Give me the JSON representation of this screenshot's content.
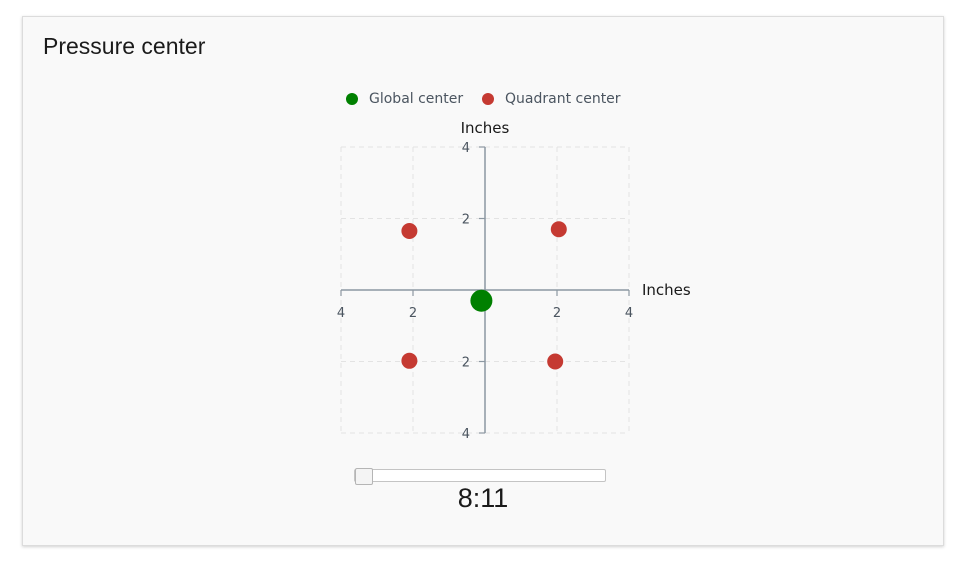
{
  "card": {
    "title": "Pressure center"
  },
  "legend": {
    "items": [
      {
        "label": "Global center",
        "color": "#008000"
      },
      {
        "label": "Quadrant center",
        "color": "#c53a32"
      }
    ]
  },
  "slider": {
    "value_label": "8:11",
    "position": 0
  },
  "chart_data": {
    "type": "scatter",
    "xlabel": "Inches",
    "ylabel": "Inches",
    "xlim": [
      -4,
      4
    ],
    "ylim": [
      -4,
      4
    ],
    "x_ticks": [
      -4,
      -2,
      2,
      4
    ],
    "y_ticks": [
      4,
      2,
      -2,
      -4
    ],
    "x_tick_labels": [
      "4",
      "2",
      "2",
      "4"
    ],
    "y_tick_labels": [
      "4",
      "2",
      "2",
      "4"
    ],
    "grid": true,
    "legend_position": "top",
    "series": [
      {
        "name": "Global center",
        "color": "#008000",
        "points": [
          {
            "x": -0.1,
            "y": -0.3
          }
        ]
      },
      {
        "name": "Quadrant center",
        "color": "#c53a32",
        "points": [
          {
            "x": -2.1,
            "y": 1.65
          },
          {
            "x": 2.05,
            "y": 1.7
          },
          {
            "x": -2.1,
            "y": -1.98
          },
          {
            "x": 1.95,
            "y": -2.0
          }
        ]
      }
    ]
  }
}
